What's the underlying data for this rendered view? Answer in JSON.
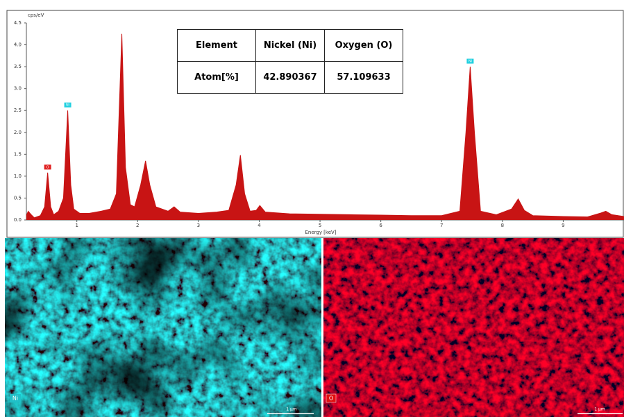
{
  "chart_data": {
    "type": "area",
    "y_label": "cps/eV",
    "x_label": "Energy [keV]",
    "color": "#c81414",
    "xlim": [
      0.17,
      10
    ],
    "xticks": [
      1,
      2,
      3,
      4,
      5,
      6,
      7,
      8,
      9
    ],
    "ylim": [
      0,
      4.5
    ],
    "yticks": [
      {
        "value": 0,
        "label": "0.0"
      },
      0.5,
      {
        "value": 1,
        "label": "1.0"
      },
      1.5,
      {
        "value": 2,
        "label": "2.0"
      },
      2.5,
      {
        "value": 3,
        "label": "3.0"
      },
      3.5,
      {
        "value": 4,
        "label": "4.0"
      },
      4.5
    ],
    "x": [
      0.17,
      0.2,
      0.25,
      0.3,
      0.4,
      0.47,
      0.52,
      0.57,
      0.62,
      0.7,
      0.78,
      0.85,
      0.9,
      0.95,
      1.05,
      1.2,
      1.4,
      1.55,
      1.65,
      1.74,
      1.8,
      1.88,
      1.95,
      2.05,
      2.13,
      2.2,
      2.3,
      2.5,
      2.6,
      2.7,
      3.0,
      3.3,
      3.5,
      3.62,
      3.69,
      3.76,
      3.85,
      3.95,
      4.01,
      4.1,
      4.5,
      5.0,
      5.5,
      6.0,
      6.5,
      7.0,
      7.3,
      7.4,
      7.47,
      7.54,
      7.64,
      7.9,
      8.15,
      8.26,
      8.36,
      8.5,
      9.0,
      9.4,
      9.6,
      9.7,
      9.8,
      10
    ],
    "values": [
      0.1,
      0.2,
      0.12,
      0.05,
      0.1,
      0.3,
      1.08,
      0.3,
      0.12,
      0.2,
      0.5,
      2.5,
      0.8,
      0.25,
      0.15,
      0.15,
      0.2,
      0.25,
      0.6,
      4.25,
      1.2,
      0.35,
      0.3,
      0.8,
      1.35,
      0.8,
      0.3,
      0.2,
      0.3,
      0.18,
      0.15,
      0.18,
      0.22,
      0.8,
      1.48,
      0.6,
      0.2,
      0.22,
      0.33,
      0.18,
      0.14,
      0.13,
      0.12,
      0.11,
      0.1,
      0.1,
      0.2,
      2.0,
      3.5,
      2.0,
      0.2,
      0.12,
      0.25,
      0.48,
      0.22,
      0.1,
      0.08,
      0.07,
      0.15,
      0.2,
      0.12,
      0.08
    ],
    "annotations": [
      {
        "text": "O",
        "x": 0.52,
        "y": 1.08,
        "color": "#e02020"
      },
      {
        "text": "Ni",
        "x": 0.85,
        "y": 2.5,
        "color": "#20d0e0"
      },
      {
        "text": "Ni",
        "x": 7.47,
        "y": 3.5,
        "color": "#20d0e0"
      }
    ]
  },
  "table": {
    "header": [
      "Element",
      "Nickel (Ni)",
      "Oxygen (O)"
    ],
    "rows": [
      [
        "Atom[%]",
        "42.890367",
        "57.109633"
      ]
    ]
  },
  "maps": [
    {
      "label": "Ni",
      "color": "#20c0c8",
      "scale": "1 µm"
    },
    {
      "label": "O",
      "color": "#e01010",
      "scale": "1 µm"
    }
  ]
}
